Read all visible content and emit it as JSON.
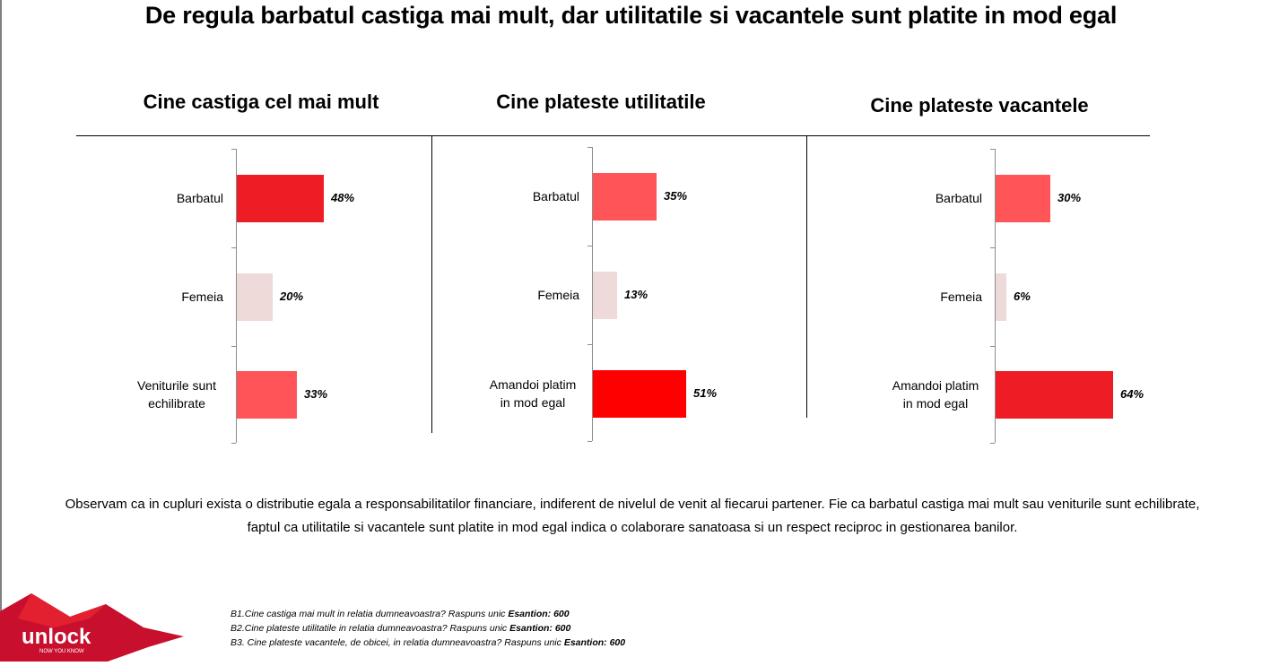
{
  "title": "De regula barbatul castiga mai mult, dar utilitatile si vacantele sunt platite in mod egal",
  "colors": {
    "strong_red": "#ee1c25",
    "medium_red": "#ff5558",
    "pale_pink": "#efdada",
    "pure_red": "#ff0000"
  },
  "chart_data": [
    {
      "type": "bar",
      "orientation": "horizontal",
      "title": "Cine castiga cel mai mult",
      "categories": [
        "Barbatul",
        "Femeia",
        "Veniturile sunt echilibrate"
      ],
      "values": [
        48,
        20,
        33
      ],
      "value_labels": [
        "48%",
        "20%",
        "33%"
      ],
      "bar_colors": [
        "#ee1c25",
        "#efdada",
        "#ff5558"
      ]
    },
    {
      "type": "bar",
      "orientation": "horizontal",
      "title": "Cine plateste utilitatile",
      "categories": [
        "Barbatul",
        "Femeia",
        "Amandoi platim in mod egal"
      ],
      "values": [
        35,
        13,
        51
      ],
      "value_labels": [
        "35%",
        "13%",
        "51%"
      ],
      "bar_colors": [
        "#ff5558",
        "#efdada",
        "#ff0000"
      ]
    },
    {
      "type": "bar",
      "orientation": "horizontal",
      "title": "Cine plateste vacantele",
      "categories": [
        "Barbatul",
        "Femeia",
        "Amandoi platim in mod egal"
      ],
      "values": [
        30,
        6,
        64
      ],
      "value_labels": [
        "30%",
        "6%",
        "64%"
      ],
      "bar_colors": [
        "#ff5558",
        "#efdada",
        "#ee1c25"
      ]
    }
  ],
  "observation": "Observam ca in cupluri exista o distributie egala a responsabilitatilor financiare, indiferent de nivelul de venit al fiecarui partener. Fie ca barbatul castiga mai mult sau veniturile sunt echilibrate, faptul ca utilitatile si vacantele sunt platite in mod egal indica o colaborare sanatoasa si un respect reciproc in gestionarea banilor.",
  "footnotes": [
    {
      "text": "B1.Cine castiga mai mult in relatia dumneavoastra? Raspuns unic ",
      "sample": "Esantion: 600"
    },
    {
      "text": "B2.Cine plateste utilitatile in relatia dumneavoastra? Raspuns unic ",
      "sample": "Esantion: 600"
    },
    {
      "text": "B3. Cine plateste vacantele, de obicei, in relatia dumneavoastra? Raspuns unic ",
      "sample": "Esantion: 600"
    }
  ],
  "logo": {
    "name": "unlock",
    "tagline": "NOW YOU KNOW"
  }
}
